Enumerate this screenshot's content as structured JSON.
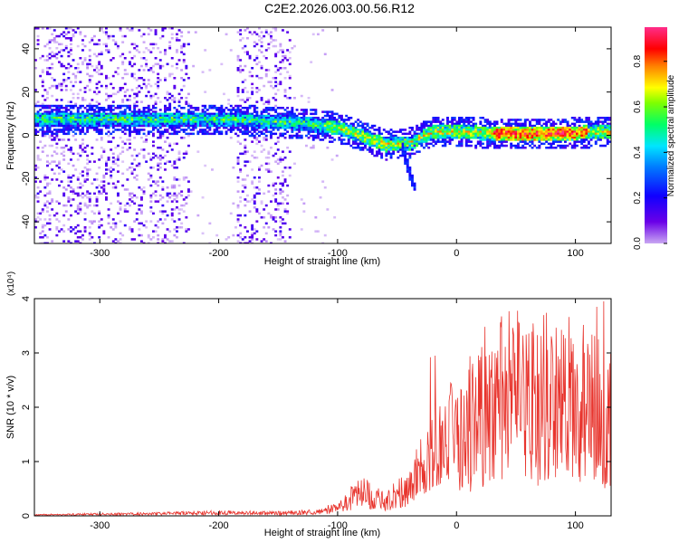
{
  "title": "C2E2.2026.003.00.56.R12",
  "colors": {
    "heat_low": "#b77bff",
    "heat_mid": "#00e0ff",
    "heat_high": "#ff3020",
    "line": "#e8352e",
    "axis": "#000000"
  },
  "chart_data": [
    {
      "type": "heatmap",
      "xlabel": "Height of straight line (km)",
      "ylabel": "Frequency (Hz)",
      "xlim": [
        -355,
        130
      ],
      "ylim": [
        -50,
        50
      ],
      "xticks": [
        -300,
        -200,
        -100,
        0,
        100
      ],
      "xtick_labels": [
        "-300",
        "-200",
        "-100",
        "0",
        "100"
      ],
      "yticks": [
        -40,
        -20,
        0,
        20,
        40
      ],
      "ytick_labels": [
        "-40",
        "-20",
        "0",
        "20",
        "40"
      ],
      "colorbar": {
        "label": "Normalized spectral amplitude",
        "range": [
          0.0,
          0.95
        ],
        "ticks": [
          0.0,
          0.2,
          0.4,
          0.6,
          0.8
        ],
        "tick_labels": [
          "0.0",
          "0.2",
          "0.4",
          "0.6",
          "0.8"
        ],
        "colormap": "rainbow (purple-blue-cyan-green-yellow-red-magenta)"
      },
      "ridge_center_hz": [
        {
          "x": -320,
          "f": 8
        },
        {
          "x": -200,
          "f": 8
        },
        {
          "x": -130,
          "f": 6
        },
        {
          "x": -100,
          "f": 4
        },
        {
          "x": -80,
          "f": 0
        },
        {
          "x": -60,
          "f": -4
        },
        {
          "x": -40,
          "f": -3
        },
        {
          "x": -20,
          "f": 2
        },
        {
          "x": 0,
          "f": 2
        },
        {
          "x": 50,
          "f": 1
        },
        {
          "x": 130,
          "f": 2
        }
      ],
      "peak_amplitude_region_km": [
        30,
        110
      ]
    },
    {
      "type": "line",
      "xlabel": "Height of straight line (km)",
      "ylabel": "SNR (10 * v/v)",
      "y_multiplier": "(x10⁴)",
      "xlim": [
        -355,
        130
      ],
      "ylim": [
        0,
        4
      ],
      "xticks": [
        -300,
        -200,
        -100,
        0,
        100
      ],
      "xtick_labels": [
        "-300",
        "-200",
        "-100",
        "0",
        "100"
      ],
      "yticks": [
        0,
        1,
        2,
        3,
        4
      ],
      "ytick_labels": [
        "0",
        "1",
        "2",
        "3",
        "4"
      ],
      "series": [
        {
          "x": [
            -350,
            -300,
            -250,
            -200,
            -150,
            -120,
            -100,
            -90,
            -80,
            -70,
            -60,
            -50,
            -40,
            -30,
            -25,
            -20,
            -15,
            -10,
            -5,
            0,
            10,
            20,
            30,
            40,
            50,
            60,
            70,
            80,
            90,
            100,
            110,
            120,
            128
          ],
          "y": [
            0.02,
            0.03,
            0.04,
            0.06,
            0.05,
            0.07,
            0.15,
            0.3,
            0.45,
            0.35,
            0.25,
            0.4,
            0.55,
            0.9,
            1.0,
            1.15,
            1.3,
            1.45,
            1.55,
            1.5,
            1.7,
            1.95,
            2.1,
            2.15,
            2.2,
            2.05,
            2.15,
            2.2,
            2.1,
            2.15,
            2.0,
            1.9,
            1.8
          ],
          "spikes": [
            {
              "x": -22,
              "y": 2.92
            },
            {
              "x": -18,
              "y": 2.95
            },
            {
              "x": 56,
              "y": 3.32
            },
            {
              "x": 118,
              "y": 3.85
            },
            {
              "x": 124,
              "y": 3.95
            }
          ]
        }
      ]
    }
  ]
}
